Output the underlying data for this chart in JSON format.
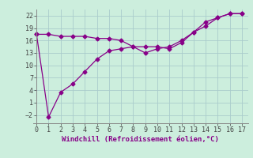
{
  "line1_x": [
    0,
    1,
    2,
    3,
    4,
    5,
    6,
    7,
    8,
    9,
    10,
    11,
    12,
    13,
    14,
    15,
    16,
    17
  ],
  "line1_y": [
    17.5,
    -2.5,
    3.5,
    5.5,
    8.5,
    11.5,
    13.5,
    14.0,
    14.5,
    13.0,
    14.0,
    14.5,
    16.0,
    18.0,
    20.5,
    21.5,
    22.5,
    22.5
  ],
  "line2_x": [
    0,
    1,
    2,
    3,
    4,
    5,
    6,
    7,
    8,
    9,
    10,
    11,
    12,
    13,
    14,
    15,
    16,
    17
  ],
  "line2_y": [
    17.5,
    17.5,
    17.0,
    17.0,
    17.0,
    16.5,
    16.5,
    16.0,
    14.5,
    14.5,
    14.5,
    14.0,
    15.5,
    18.0,
    19.5,
    21.5,
    22.5,
    22.5
  ],
  "color": "#880088",
  "bg_color": "#cceedd",
  "grid_color": "#aacccc",
  "xlabel": "Windchill (Refroidissement éolien,°C)",
  "xlim": [
    -0.3,
    17.5
  ],
  "ylim": [
    -4.0,
    23.5
  ],
  "yticks": [
    -2,
    1,
    4,
    7,
    10,
    13,
    16,
    19,
    22
  ],
  "xticks": [
    0,
    1,
    2,
    3,
    4,
    5,
    6,
    7,
    8,
    9,
    10,
    11,
    12,
    13,
    14,
    15,
    16,
    17
  ],
  "marker": "D",
  "markersize": 2.5,
  "linewidth": 0.9,
  "xlabel_fontsize": 6.5,
  "tick_fontsize": 6.0
}
